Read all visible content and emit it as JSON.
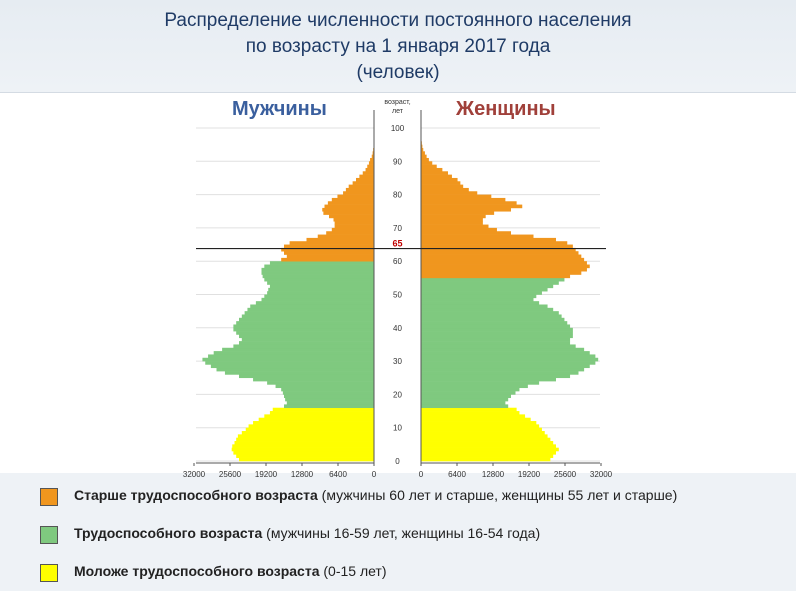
{
  "title": {
    "line1": "Распределение численности постоянного населения",
    "line2": "по возрасту на 1 января 2017 года",
    "line3": "(человек)"
  },
  "labels": {
    "men": "Мужчины",
    "women": "Женщины"
  },
  "legend": [
    {
      "bold": "Старше трудоспособного возраста",
      "rest": " (мужчины 60 лет и старше, женщины 55 лет и старше)",
      "color": "#f0961e"
    },
    {
      "bold": "Трудоспособного возраста",
      "rest": " (мужчины 16-59 лет, женщины 16-54 года)",
      "color": "#7fc97f"
    },
    {
      "bold": "Моложе трудоспособного возраста",
      "rest": " (0-15 лет)",
      "color": "#ffff00"
    }
  ],
  "chart_data": {
    "type": "bar",
    "subtype": "population-pyramid",
    "age_axis_label_1": "возраст,",
    "age_axis_label_2": "лет",
    "age_ticks": [
      "0",
      "10",
      "20",
      "30",
      "40",
      "50",
      "60",
      "70",
      "80",
      "90",
      "100"
    ],
    "x_ticks_men": [
      "32000",
      "25600",
      "19200",
      "12800",
      "6400",
      "0"
    ],
    "x_ticks_women": [
      "0",
      "6400",
      "12800",
      "19200",
      "25600",
      "32000"
    ],
    "xlim": [
      0,
      32000
    ],
    "ylim": [
      0,
      100
    ],
    "marker": {
      "age": 65,
      "label": "65"
    },
    "colors": {
      "older": "#f0961e",
      "working": "#7fc97f",
      "young": "#ffff00"
    },
    "series": [
      {
        "name": "Мужчины",
        "values": [
          24000,
          24500,
          25000,
          25300,
          25200,
          24800,
          24500,
          24200,
          23500,
          22800,
          22300,
          21500,
          20500,
          19500,
          18500,
          18000,
          16000,
          15500,
          15800,
          16000,
          16200,
          16500,
          17500,
          19000,
          21500,
          24000,
          26500,
          28000,
          29000,
          30000,
          30500,
          29500,
          28500,
          27000,
          25000,
          24000,
          23500,
          24000,
          24500,
          25000,
          25000,
          24500,
          24000,
          23500,
          23000,
          22500,
          22000,
          21000,
          20000,
          19500,
          19000,
          18800,
          18500,
          19000,
          19500,
          19800,
          20000,
          20000,
          19500,
          18500,
          16500,
          15500,
          16000,
          16500,
          16000,
          15000,
          12000,
          10000,
          8500,
          7500,
          7000,
          7000,
          7200,
          8000,
          9000,
          9200,
          8800,
          8200,
          7500,
          6500,
          5500,
          5000,
          4500,
          3800,
          3200,
          2600,
          2000,
          1500,
          1200,
          900,
          700,
          400,
          250,
          150,
          80,
          40,
          20,
          0,
          0,
          0,
          0
        ]
      },
      {
        "name": "Женщины",
        "values": [
          23000,
          23500,
          24000,
          24500,
          24000,
          23500,
          23000,
          22500,
          22000,
          21500,
          21000,
          20500,
          19500,
          18500,
          17500,
          17000,
          15500,
          15000,
          15500,
          16000,
          16800,
          17500,
          19000,
          21000,
          24000,
          26500,
          28000,
          29000,
          30000,
          31000,
          31500,
          31000,
          30000,
          29000,
          27500,
          26500,
          26500,
          27000,
          27000,
          27000,
          26500,
          26000,
          25500,
          25000,
          24500,
          23500,
          22500,
          21000,
          20000,
          20500,
          21500,
          22500,
          23500,
          24500,
          25500,
          26500,
          28500,
          29500,
          30000,
          29500,
          29000,
          28500,
          28000,
          27500,
          27000,
          26000,
          24000,
          20000,
          16000,
          13500,
          12000,
          11000,
          11000,
          11500,
          13000,
          16000,
          18000,
          17000,
          15000,
          12500,
          10000,
          8500,
          7500,
          7000,
          6500,
          5500,
          4800,
          3800,
          2800,
          2000,
          1400,
          1000,
          700,
          400,
          250,
          150,
          80,
          40,
          0,
          0,
          0
        ]
      }
    ]
  }
}
